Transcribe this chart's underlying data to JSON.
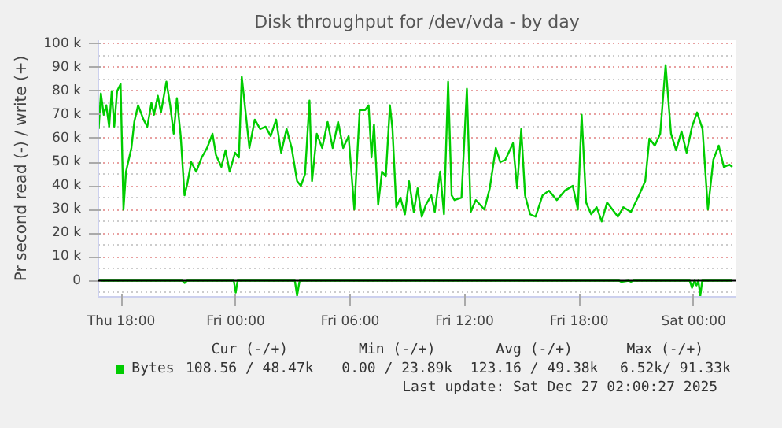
{
  "chart_data": {
    "type": "line",
    "title": "Disk throughput for /dev/vda - by day",
    "ylabel": "Pr second read (-) / write (+)",
    "xlim": [
      "2025-12-25T16:48",
      "2025-12-27T02:12"
    ],
    "ylim": [
      -6800,
      101500
    ],
    "xticks": [
      {
        "value": "2025-12-25T18:00",
        "label": "Thu 18:00"
      },
      {
        "value": "2025-12-26T00:00",
        "label": "Fri 00:00"
      },
      {
        "value": "2025-12-26T06:00",
        "label": "Fri 06:00"
      },
      {
        "value": "2025-12-26T12:00",
        "label": "Fri 12:00"
      },
      {
        "value": "2025-12-26T18:00",
        "label": "Fri 18:00"
      },
      {
        "value": "2025-12-27T00:00",
        "label": "Sat 00:00"
      }
    ],
    "yticks": [
      {
        "value": 0,
        "label": "0"
      },
      {
        "value": 10000,
        "label": "10 k"
      },
      {
        "value": 20000,
        "label": "20 k"
      },
      {
        "value": 30000,
        "label": "30 k"
      },
      {
        "value": 40000,
        "label": "40 k"
      },
      {
        "value": 50000,
        "label": "50 k"
      },
      {
        "value": 60000,
        "label": "60 k"
      },
      {
        "value": 70000,
        "label": "70 k"
      },
      {
        "value": 80000,
        "label": "80 k"
      },
      {
        "value": 90000,
        "label": "90 k"
      },
      {
        "value": 100000,
        "label": "100 k"
      }
    ],
    "grid": true,
    "legend": "bottom",
    "ref_lines": [
      {
        "axis": "y",
        "value": 0,
        "color": "#000000"
      }
    ],
    "series": [
      {
        "name": "Bytes",
        "color": "#00cc00",
        "x": [
          "2025-12-25T16:49",
          "2025-12-25T16:56",
          "2025-12-25T17:05",
          "2025-12-25T17:13",
          "2025-12-25T17:22",
          "2025-12-25T17:30",
          "2025-12-25T17:38",
          "2025-12-25T17:47",
          "2025-12-25T17:58",
          "2025-12-25T18:07",
          "2025-12-25T18:15",
          "2025-12-25T18:32",
          "2025-12-25T18:41",
          "2025-12-25T18:53",
          "2025-12-25T19:10",
          "2025-12-25T19:22",
          "2025-12-25T19:35",
          "2025-12-25T19:43",
          "2025-12-25T19:55",
          "2025-12-25T20:05",
          "2025-12-25T20:22",
          "2025-12-25T20:34",
          "2025-12-25T20:45",
          "2025-12-25T20:55",
          "2025-12-25T21:07",
          "2025-12-25T21:19",
          "2025-12-25T21:28",
          "2025-12-25T21:40",
          "2025-12-25T21:56",
          "2025-12-25T22:13",
          "2025-12-25T22:30",
          "2025-12-25T22:47",
          "2025-12-25T22:58",
          "2025-12-25T23:15",
          "2025-12-25T23:28",
          "2025-12-25T23:41",
          "2025-12-25T23:58",
          "2025-12-26T00:10",
          "2025-12-26T00:19",
          "2025-12-26T00:32",
          "2025-12-26T00:43",
          "2025-12-26T01:00",
          "2025-12-26T01:17",
          "2025-12-26T01:34",
          "2025-12-26T01:50",
          "2025-12-26T02:07",
          "2025-12-26T02:23",
          "2025-12-26T02:40",
          "2025-12-26T02:56",
          "2025-12-26T03:13",
          "2025-12-26T03:25",
          "2025-12-26T03:38",
          "2025-12-26T03:52",
          "2025-12-26T04:00",
          "2025-12-26T04:15",
          "2025-12-26T04:32",
          "2025-12-26T04:49",
          "2025-12-26T05:05",
          "2025-12-26T05:22",
          "2025-12-26T05:38",
          "2025-12-26T05:55",
          "2025-12-26T06:13",
          "2025-12-26T06:30",
          "2025-12-26T06:47",
          "2025-12-26T06:58",
          "2025-12-26T07:07",
          "2025-12-26T07:15",
          "2025-12-26T07:28",
          "2025-12-26T07:40",
          "2025-12-26T07:52",
          "2025-12-26T08:05",
          "2025-12-26T08:13",
          "2025-12-26T08:25",
          "2025-12-26T08:38",
          "2025-12-26T08:52",
          "2025-12-26T09:05",
          "2025-12-26T09:20",
          "2025-12-26T09:32",
          "2025-12-26T09:45",
          "2025-12-26T09:58",
          "2025-12-26T10:15",
          "2025-12-26T10:26",
          "2025-12-26T10:43",
          "2025-12-26T10:55",
          "2025-12-26T11:08",
          "2025-12-26T11:19",
          "2025-12-26T11:28",
          "2025-12-26T11:50",
          "2025-12-26T12:07",
          "2025-12-26T12:19",
          "2025-12-26T12:35",
          "2025-12-26T12:49",
          "2025-12-26T13:02",
          "2025-12-26T13:19",
          "2025-12-26T13:38",
          "2025-12-26T13:52",
          "2025-12-26T14:08",
          "2025-12-26T14:32",
          "2025-12-26T14:45",
          "2025-12-26T14:58",
          "2025-12-26T15:10",
          "2025-12-26T15:26",
          "2025-12-26T15:43",
          "2025-12-26T16:05",
          "2025-12-26T16:25",
          "2025-12-26T16:50",
          "2025-12-26T17:15",
          "2025-12-26T17:40",
          "2025-12-26T17:56",
          "2025-12-26T18:08",
          "2025-12-26T18:22",
          "2025-12-26T18:38",
          "2025-12-26T18:55",
          "2025-12-26T19:11",
          "2025-12-26T19:28",
          "2025-12-26T19:45",
          "2025-12-26T20:02",
          "2025-12-26T20:19",
          "2025-12-26T20:43",
          "2025-12-26T21:08",
          "2025-12-26T21:28",
          "2025-12-26T21:41",
          "2025-12-26T21:58",
          "2025-12-26T22:15",
          "2025-12-26T22:32",
          "2025-12-26T22:49",
          "2025-12-26T23:05",
          "2025-12-26T23:22",
          "2025-12-26T23:38",
          "2025-12-26T23:55",
          "2025-12-27T00:11",
          "2025-12-27T00:28",
          "2025-12-27T00:45",
          "2025-12-27T01:02",
          "2025-12-27T01:19",
          "2025-12-27T01:35",
          "2025-12-27T01:52",
          "2025-12-27T02:02"
        ],
        "values": [
          64000,
          79000,
          70000,
          74000,
          65000,
          80000,
          65000,
          80000,
          83000,
          30000,
          46000,
          56000,
          67000,
          74000,
          68000,
          65000,
          75000,
          70000,
          78000,
          71000,
          84000,
          74000,
          62000,
          77000,
          61000,
          36000,
          41000,
          50000,
          46000,
          52000,
          56000,
          62000,
          53000,
          48000,
          55000,
          46000,
          54000,
          52000,
          86000,
          70000,
          56000,
          68000,
          64000,
          65000,
          61000,
          68000,
          54000,
          64000,
          56000,
          42000,
          40000,
          45000,
          76000,
          42000,
          62000,
          56000,
          67000,
          56000,
          67000,
          56000,
          61000,
          30000,
          72000,
          72000,
          74000,
          52000,
          66000,
          32000,
          46000,
          44000,
          74000,
          64000,
          31000,
          35000,
          28000,
          42000,
          29000,
          39000,
          27000,
          32000,
          36000,
          29000,
          46000,
          28000,
          84000,
          36000,
          34000,
          35000,
          81000,
          29000,
          34000,
          32000,
          30000,
          39000,
          56000,
          50000,
          51000,
          58000,
          39000,
          64000,
          36000,
          28000,
          27000,
          36000,
          38000,
          34000,
          38000,
          40000,
          30000,
          70000,
          33000,
          28000,
          31000,
          25000,
          33000,
          30000,
          27000,
          31000,
          29000,
          36000,
          42000,
          60000,
          57000,
          62000,
          91000,
          62000,
          55000,
          63000,
          54000,
          65000,
          71000,
          64000,
          30000,
          51000,
          57000,
          48000,
          49000,
          48000
        ]
      },
      {
        "color": "#00cc00",
        "x": [
          "2025-12-25T16:49",
          "2025-12-25T21:12",
          "2025-12-25T21:19",
          "2025-12-25T21:27",
          "2025-12-25T23:54",
          "2025-12-26T00:00",
          "2025-12-26T00:06",
          "2025-12-26T03:06",
          "2025-12-26T03:13",
          "2025-12-26T03:21",
          "2025-12-26T20:06",
          "2025-12-26T20:12",
          "2025-12-26T20:36",
          "2025-12-26T20:43",
          "2025-12-26T20:51",
          "2025-12-26T23:48",
          "2025-12-26T23:55",
          "2025-12-27T00:03",
          "2025-12-27T00:09",
          "2025-12-27T00:15",
          "2025-12-27T00:21",
          "2025-12-27T00:27",
          "2025-12-27T02:02"
        ],
        "values": [
          0,
          0,
          -1000,
          0,
          0,
          -5000,
          0,
          0,
          -6300,
          0,
          0,
          -500,
          0,
          -500,
          0,
          0,
          -3000,
          0,
          -2000,
          0,
          -6500,
          0,
          0
        ]
      }
    ],
    "annotations": [
      "Cur (-/+)",
      "Min (-/+)",
      "Avg (-/+)",
      "Max (-/+)",
      "108.56 / 48.47k",
      "0.00 / 23.89k",
      "123.16 / 49.38k",
      "6.52k/ 91.33k",
      "Last update: Sat Dec 27 02:00:27 2025"
    ]
  }
}
